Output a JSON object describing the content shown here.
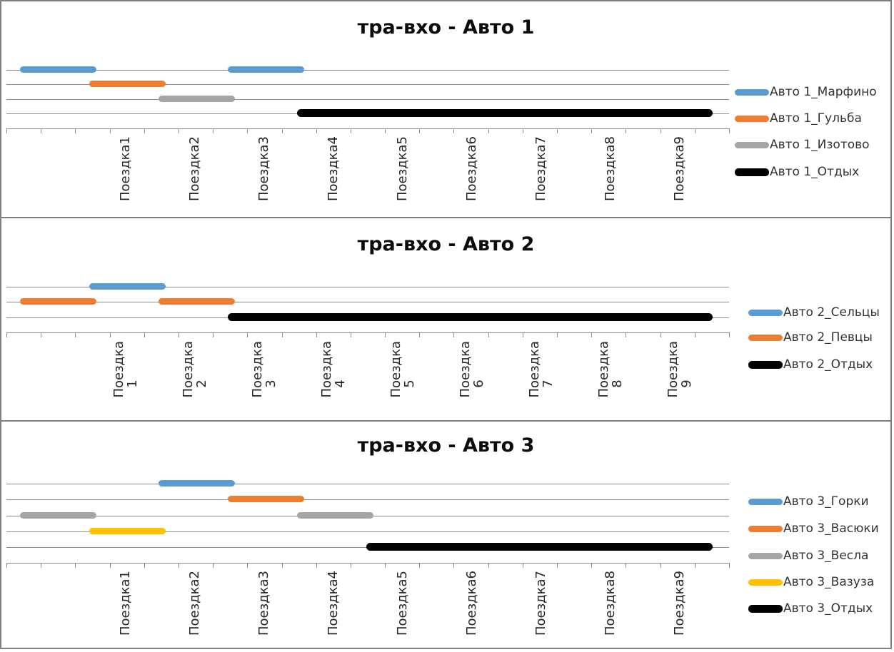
{
  "frame": {
    "background": "#FFFFFF",
    "border_color": "#7F7F7F",
    "grid_color": "#8C8C8C",
    "title_color": "#0D0D0D",
    "label_color": "#262626"
  },
  "palette": {
    "blue": "#5B9BD5",
    "orange": "#ED7D31",
    "gray": "#A5A5A5",
    "yellow": "#FFC000",
    "black": "#000000"
  },
  "chart_data": [
    {
      "type": "gantt",
      "title": "тра-вхо - Авто 1",
      "categories": [
        "Поездка1",
        "Поездка2",
        "Поездка3",
        "Поездка4",
        "Поездка5",
        "Поездка6",
        "Поездка7",
        "Поездка8",
        "Поездка9"
      ],
      "xlabel": "",
      "ylabel": "",
      "axis": {
        "x_min": 0,
        "x_max": 10.4,
        "tick_interval": 0.5,
        "category_width": 1,
        "grid": true
      },
      "legend_position": "right",
      "series": [
        {
          "name": "Авто 1_Марфино",
          "color": "blue",
          "segments": [
            [
              0.2,
              1.3
            ],
            [
              3.2,
              4.3
            ]
          ]
        },
        {
          "name": "Авто 1_Гульба",
          "color": "orange",
          "segments": [
            [
              1.2,
              2.3
            ]
          ]
        },
        {
          "name": "Авто 1_Изотово",
          "color": "gray",
          "segments": [
            [
              2.2,
              3.3
            ]
          ]
        },
        {
          "name": "Авто 1_Отдых",
          "color": "black",
          "segments": [
            [
              4.2,
              10.2
            ]
          ]
        }
      ]
    },
    {
      "type": "gantt",
      "title": "тра-вхо - Авто 2",
      "categories": [
        "Поездка 1",
        "Поездка 2",
        "Поездка 3",
        "Поездка 4",
        "Поездка 5",
        "Поездка 6",
        "Поездка 7",
        "Поездка 8",
        "Поездка 9"
      ],
      "xlabel": "",
      "ylabel": "",
      "axis": {
        "x_min": 0,
        "x_max": 10.4,
        "tick_interval": 0.5,
        "category_width": 1,
        "grid": true
      },
      "legend_position": "right",
      "series": [
        {
          "name": "Авто 2_Сельцы",
          "color": "blue",
          "segments": [
            [
              1.2,
              2.3
            ]
          ]
        },
        {
          "name": "Авто 2_Певцы",
          "color": "orange",
          "segments": [
            [
              0.2,
              1.3
            ],
            [
              2.2,
              3.3
            ]
          ]
        },
        {
          "name": "Авто 2_Отдых",
          "color": "black",
          "segments": [
            [
              3.2,
              10.2
            ]
          ]
        }
      ]
    },
    {
      "type": "gantt",
      "title": "тра-вхо - Авто 3",
      "categories": [
        "Поездка1",
        "Поездка2",
        "Поездка3",
        "Поездка4",
        "Поездка5",
        "Поездка6",
        "Поездка7",
        "Поездка8",
        "Поездка9"
      ],
      "xlabel": "",
      "ylabel": "",
      "axis": {
        "x_min": 0,
        "x_max": 10.4,
        "tick_interval": 0.5,
        "category_width": 1,
        "grid": true
      },
      "legend_position": "right",
      "series": [
        {
          "name": "Авто 3_Горки",
          "color": "blue",
          "segments": [
            [
              2.2,
              3.3
            ]
          ]
        },
        {
          "name": "Авто 3_Васюки",
          "color": "orange",
          "segments": [
            [
              3.2,
              4.3
            ]
          ]
        },
        {
          "name": "Авто 3_Весла",
          "color": "gray",
          "segments": [
            [
              0.2,
              1.3
            ],
            [
              4.2,
              5.3
            ]
          ]
        },
        {
          "name": "Авто 3_Вазуза",
          "color": "yellow",
          "segments": [
            [
              1.2,
              2.3
            ]
          ]
        },
        {
          "name": "Авто 3_Отдых",
          "color": "black",
          "segments": [
            [
              5.2,
              10.2
            ]
          ]
        }
      ]
    }
  ]
}
